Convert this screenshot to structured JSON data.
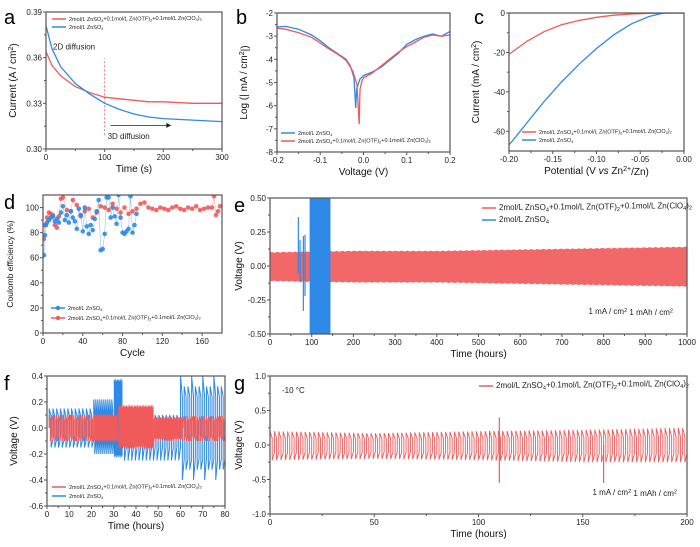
{
  "colors": {
    "red": "#f15a5a",
    "blue": "#2e8ae6",
    "axis": "#555555"
  },
  "chart_data": [
    {
      "id": "a",
      "letter": "a",
      "type": "line",
      "xlabel": "Time (s)",
      "ylabel": "Current (A / cm²)",
      "xlim": [
        0,
        300
      ],
      "ylim": [
        0.3,
        0.39
      ],
      "xticks": [
        0,
        100,
        200,
        300
      ],
      "xtick_labels": [
        "0",
        "100",
        "200",
        "300"
      ],
      "yticks": [
        0.3,
        0.33,
        0.36,
        0.39
      ],
      "ytick_labels": [
        "0.30",
        "0.33",
        "0.36",
        "0.39"
      ],
      "legend": "top-right",
      "series": [
        {
          "name": "2mol/L ZnSO4+0.1mol/L Zn(OTF)2+0.1mol/L Zn(ClO4)2",
          "color": "red",
          "x": [
            0,
            10,
            25,
            50,
            75,
            100,
            125,
            150,
            175,
            200,
            250,
            300
          ],
          "y": [
            0.364,
            0.355,
            0.348,
            0.341,
            0.337,
            0.334,
            0.333,
            0.332,
            0.331,
            0.331,
            0.33,
            0.33
          ]
        },
        {
          "name": "2mol/L ZnSO4",
          "color": "blue",
          "x": [
            0,
            10,
            25,
            50,
            75,
            100,
            125,
            150,
            175,
            200,
            250,
            300
          ],
          "y": [
            0.381,
            0.366,
            0.354,
            0.343,
            0.336,
            0.33,
            0.326,
            0.323,
            0.321,
            0.32,
            0.319,
            0.318
          ]
        }
      ],
      "annotations": [
        {
          "text": "2D diffusion",
          "x": 12,
          "y": 0.3655
        },
        {
          "text": "3D diffusion",
          "x": 105,
          "y": 0.3065
        }
      ],
      "vline": {
        "x": 100,
        "y": [
          0.309,
          0.3595
        ]
      },
      "arrow": {
        "x": [
          110,
          205
        ],
        "y": 0.3155
      }
    },
    {
      "id": "b",
      "letter": "b",
      "type": "line",
      "xlabel": "Voltage (V)",
      "ylabel": "Log (| mA / cm²|)",
      "xlim": [
        -0.2,
        0.2
      ],
      "ylim": [
        -8,
        -2
      ],
      "xticks": [
        -0.2,
        -0.1,
        0.0,
        0.1,
        0.2
      ],
      "xtick_labels": [
        "-0.2",
        "-0.1",
        "0.0",
        "0.1",
        "0.2"
      ],
      "yticks": [
        -8,
        -7,
        -6,
        -5,
        -4,
        -3,
        -2
      ],
      "ytick_labels": [
        "-8",
        "-7",
        "-6",
        "-5",
        "-4",
        "-3",
        "-2"
      ],
      "legend": "bottom-left",
      "series": [
        {
          "name": "2mol/L ZnSO4",
          "color": "blue",
          "x": [
            -0.2,
            -0.18,
            -0.15,
            -0.12,
            -0.1,
            -0.08,
            -0.06,
            -0.04,
            -0.03,
            -0.022,
            -0.018,
            -0.016,
            -0.012,
            -0.008,
            0.0,
            0.02,
            0.04,
            0.06,
            0.08,
            0.1,
            0.12,
            0.14,
            0.16,
            0.18,
            0.2
          ],
          "y": [
            -2.6,
            -2.58,
            -2.7,
            -2.95,
            -3.2,
            -3.5,
            -3.75,
            -4.0,
            -4.3,
            -4.8,
            -6.1,
            -5.3,
            -5.05,
            -4.85,
            -4.7,
            -4.55,
            -4.35,
            -4.05,
            -3.75,
            -3.35,
            -3.15,
            -3.0,
            -2.9,
            -3.0,
            -2.8
          ]
        },
        {
          "name": "2mol/L ZnSO4+0.1mol/L Zn(OTF)2+0.1mol/L Zn(ClO4)2",
          "color": "red",
          "x": [
            -0.2,
            -0.18,
            -0.15,
            -0.12,
            -0.1,
            -0.08,
            -0.06,
            -0.04,
            -0.025,
            -0.015,
            -0.01,
            -0.008,
            -0.004,
            0.0,
            0.02,
            0.04,
            0.06,
            0.08,
            0.1,
            0.12,
            0.14,
            0.16,
            0.18,
            0.2
          ],
          "y": [
            -2.65,
            -2.7,
            -2.85,
            -3.05,
            -3.3,
            -3.55,
            -3.78,
            -4.05,
            -4.5,
            -5.1,
            -6.8,
            -5.3,
            -4.95,
            -4.8,
            -4.6,
            -4.3,
            -4.0,
            -3.7,
            -3.45,
            -3.25,
            -3.05,
            -2.95,
            -3.0,
            -2.95
          ]
        }
      ]
    },
    {
      "id": "c",
      "letter": "c",
      "type": "line",
      "xlabel": "Potential (V vs Zn²⁺/Zn)",
      "ylabel": "Current (mA / cm²)",
      "xlim": [
        -0.2,
        0.0
      ],
      "ylim": [
        -70,
        0
      ],
      "xticks": [
        -0.2,
        -0.15,
        -0.1,
        -0.05,
        0.0
      ],
      "xtick_labels": [
        "-0.20",
        "-0.15",
        "-0.10",
        "-0.05",
        "0.00"
      ],
      "yticks": [
        -60,
        -40,
        -20,
        0
      ],
      "ytick_labels": [
        "-60",
        "-40",
        "-20",
        "0"
      ],
      "legend": "bottom-right",
      "series": [
        {
          "name": "2mol/L ZnSO4+0.1mol/L Zn(OTF)2+0.1mol/L Zn(ClO4)2",
          "color": "red",
          "x": [
            -0.2,
            -0.18,
            -0.16,
            -0.14,
            -0.12,
            -0.1,
            -0.08,
            -0.06,
            -0.04,
            -0.02,
            0.0
          ],
          "y": [
            -21,
            -14.5,
            -9.5,
            -6.0,
            -3.8,
            -2.2,
            -1.1,
            -0.5,
            -0.2,
            -0.05,
            0
          ]
        },
        {
          "name": "2mol/L ZnSO4",
          "color": "blue",
          "x": [
            -0.2,
            -0.18,
            -0.16,
            -0.14,
            -0.12,
            -0.1,
            -0.08,
            -0.06,
            -0.04,
            -0.025,
            -0.02,
            0.0
          ],
          "y": [
            -67,
            -56,
            -45,
            -35,
            -26,
            -18,
            -11,
            -5.5,
            -1.8,
            -0.2,
            0,
            0
          ]
        }
      ]
    },
    {
      "id": "d",
      "letter": "d",
      "type": "scatter",
      "xlabel": "Cycle",
      "ylabel": "Coulomb efficiency (%)",
      "xlim": [
        0,
        180
      ],
      "ylim": [
        0,
        110
      ],
      "xticks": [
        0,
        40,
        80,
        120,
        160
      ],
      "xtick_labels": [
        "0",
        "40",
        "80",
        "120",
        "160"
      ],
      "yticks": [
        0,
        20,
        40,
        60,
        80,
        100
      ],
      "ytick_labels": [
        "0",
        "20",
        "40",
        "60",
        "80",
        "100"
      ],
      "legend": "bottom-left",
      "series": [
        {
          "name": "2mol/L ZnSO4",
          "color": "blue",
          "x": [
            1,
            2,
            3,
            4,
            6,
            8,
            10,
            12,
            14,
            16,
            18,
            20,
            22,
            24,
            26,
            28,
            30,
            32,
            34,
            36,
            38,
            40,
            42,
            44,
            46,
            48,
            50,
            52,
            54,
            56,
            58,
            60,
            62,
            64,
            66,
            68,
            70,
            72,
            74,
            76,
            78,
            80,
            82,
            84,
            86,
            88,
            90,
            92,
            94
          ],
          "y": [
            62,
            78,
            86,
            88,
            90,
            92,
            93,
            89,
            91,
            88,
            96,
            101,
            90,
            94,
            88,
            97,
            92,
            89,
            83,
            99,
            94,
            81,
            100,
            85,
            79,
            86,
            82,
            91,
            97,
            106,
            66,
            67,
            79,
            108,
            108,
            92,
            100,
            93,
            87,
            110,
            92,
            80,
            79,
            81,
            83,
            109,
            80,
            86,
            95
          ]
        },
        {
          "name": "2mol/L ZnSO4+0.1mol/L Zn(OTF)2+0.1mol/L Zn(ClO4)2",
          "color": "red",
          "x": [
            1,
            2,
            4,
            6,
            8,
            10,
            12,
            14,
            16,
            18,
            20,
            24,
            28,
            30,
            34,
            38,
            42,
            46,
            50,
            54,
            58,
            62,
            66,
            70,
            74,
            78,
            82,
            86,
            90,
            94,
            98,
            102,
            106,
            110,
            114,
            118,
            122,
            126,
            130,
            134,
            138,
            142,
            146,
            150,
            154,
            158,
            162,
            166,
            170,
            172,
            174,
            176,
            178
          ],
          "y": [
            75,
            86,
            92,
            96,
            95,
            94,
            86,
            84,
            93,
            107,
            108,
            98,
            97,
            106,
            102,
            93,
            97,
            99,
            92,
            96,
            101,
            100,
            98,
            103,
            99,
            96,
            100,
            95,
            97,
            99,
            103,
            104,
            100,
            99,
            98,
            100,
            99,
            98,
            100,
            101,
            99,
            98,
            100,
            99,
            101,
            98,
            99,
            100,
            100,
            109,
            94,
            97,
            101
          ]
        }
      ]
    },
    {
      "id": "e",
      "letter": "e",
      "type": "line",
      "xlabel": "Time (hours)",
      "ylabel": "Voltage (V)",
      "xlim": [
        0,
        1000
      ],
      "ylim": [
        -0.5,
        0.5
      ],
      "xticks": [
        0,
        100,
        200,
        300,
        400,
        500,
        600,
        700,
        800,
        900,
        1000
      ],
      "xtick_labels": [
        "0",
        "100",
        "200",
        "300",
        "400",
        "500",
        "600",
        "700",
        "800",
        "900",
        "1000"
      ],
      "yticks": [
        -0.5,
        -0.25,
        0.0,
        0.25,
        0.5
      ],
      "ytick_labels": [
        "-0.50",
        "-0.25",
        "0.00",
        "0.25",
        "0.50"
      ],
      "legend": "top-right",
      "series": [
        {
          "name": "2mol/L ZnSO4+0.1mol/L Zn(OTF)2+0.1mol/L Zn(ClO4)2",
          "color": "red",
          "envelope": {
            "x": [
              0,
              200,
              400,
              600,
              800,
              1000
            ],
            "upper": [
              0.1,
              0.11,
              0.11,
              0.12,
              0.13,
              0.14
            ],
            "lower": [
              -0.11,
              -0.12,
              -0.12,
              -0.13,
              -0.14,
              -0.15
            ]
          }
        },
        {
          "name": "2mol/L ZnSO4",
          "color": "blue",
          "spikes": {
            "x": [
              68,
              72,
              80,
              84
            ],
            "upper": [
              0.36,
              0.19,
              0.22,
              0.23
            ],
            "lower": [
              -0.05,
              -0.12,
              -0.33,
              -0.22
            ]
          },
          "band": {
            "x": [
              95,
              145
            ],
            "y": [
              -0.5,
              0.5
            ]
          }
        }
      ],
      "annotations": [
        {
          "text": "1 mA / cm²  1 mAh / cm²",
          "position": "bottom-right"
        }
      ]
    },
    {
      "id": "f",
      "letter": "f",
      "type": "line",
      "xlabel": "Time (hours)",
      "ylabel": "Voltage (V)",
      "xlim": [
        0,
        80
      ],
      "ylim": [
        -0.6,
        0.4
      ],
      "xticks": [
        0,
        10,
        20,
        30,
        40,
        50,
        60,
        70,
        80
      ],
      "xtick_labels": [
        "0",
        "10",
        "20",
        "30",
        "40",
        "50",
        "60",
        "70",
        "80"
      ],
      "yticks": [
        -0.6,
        -0.4,
        -0.2,
        0.0,
        0.2,
        0.4
      ],
      "ytick_labels": [
        "-0.6",
        "-0.4",
        "-0.2",
        "0.0",
        "0.2",
        "0.4"
      ],
      "legend": "bottom-left",
      "series": [
        {
          "name": "2mol/L ZnSO4+0.1mol/L Zn(OTF)2+0.1mol/L Zn(ClO4)2",
          "color": "red",
          "segments": [
            {
              "x": [
                1,
                21
              ],
              "upper": 0.1,
              "lower": -0.1,
              "cycles": 19
            },
            {
              "x": [
                21,
                32
              ],
              "upper": 0.1,
              "lower": -0.1,
              "dense": true
            },
            {
              "x": [
                32,
                48
              ],
              "upper": 0.17,
              "lower": -0.15,
              "dense": true
            },
            {
              "x": [
                48,
                61
              ],
              "upper": 0.08,
              "lower": -0.09,
              "dense": true
            },
            {
              "x": [
                61,
                80
              ],
              "upper": 0.09,
              "lower": -0.1,
              "cycles": 18
            }
          ]
        },
        {
          "name": "2mol/L ZnSO4",
          "color": "blue",
          "segments": [
            {
              "x": [
                1,
                21
              ],
              "upper": 0.15,
              "lower": -0.15,
              "cycles": 12
            },
            {
              "x": [
                21,
                30
              ],
              "upper": 0.22,
              "lower": -0.2,
              "cycles": 10
            },
            {
              "x": [
                30,
                34
              ],
              "upper": 0.37,
              "lower": -0.22,
              "dense": true
            },
            {
              "x": [
                34,
                60
              ],
              "upper": 0.1,
              "lower": -0.25,
              "cycles": 16
            },
            {
              "x": [
                60,
                80
              ],
              "upper": 0.4,
              "lower": -0.4,
              "cycles": 12
            }
          ]
        }
      ]
    },
    {
      "id": "g",
      "letter": "g",
      "type": "line",
      "xlabel": "Time (hours)",
      "ylabel": "Voltage (V)",
      "xlim": [
        0,
        200
      ],
      "ylim": [
        -1.0,
        1.0
      ],
      "xticks": [
        0,
        50,
        100,
        150,
        200
      ],
      "xtick_labels": [
        "0",
        "50",
        "100",
        "150",
        "200"
      ],
      "yticks": [
        -1.0,
        -0.5,
        0.0,
        0.5,
        1.0
      ],
      "ytick_labels": [
        "-1.0",
        "-0.5",
        "0.0",
        "0.5",
        "1.0"
      ],
      "legend": "top-right",
      "series": [
        {
          "name": "2mol/L ZnSO4+0.1mol/L Zn(OTF)2+0.1mol/L Zn(ClO4)2",
          "color": "red",
          "cycles": 95,
          "upper": [
            0.2,
            0.17,
            0.2,
            0.22,
            0.25
          ],
          "lower": [
            -0.22,
            -0.2,
            -0.22,
            -0.25,
            -0.25
          ],
          "envelope_x": [
            0,
            50,
            100,
            150,
            200
          ],
          "spikes": [
            {
              "x": 110,
              "upper": 0.4,
              "lower": -0.55
            },
            {
              "x": 160,
              "upper": 0.0,
              "lower": -0.55
            }
          ]
        }
      ],
      "annotations": [
        {
          "text": "-10 °C",
          "position": "top-left"
        },
        {
          "text": "1 mA / cm²  1 mAh / cm²",
          "position": "bottom-right"
        }
      ]
    }
  ]
}
